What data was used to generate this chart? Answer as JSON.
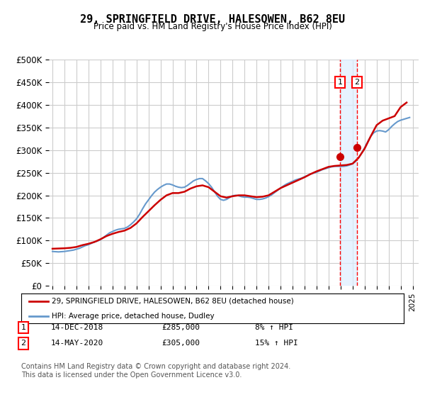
{
  "title": "29, SPRINGFIELD DRIVE, HALESOWEN, B62 8EU",
  "subtitle": "Price paid vs. HM Land Registry's House Price Index (HPI)",
  "xlabel": "",
  "ylabel": "",
  "ylim": [
    0,
    500000
  ],
  "yticks": [
    0,
    50000,
    100000,
    150000,
    200000,
    250000,
    300000,
    350000,
    400000,
    450000,
    500000
  ],
  "ytick_labels": [
    "£0",
    "£50K",
    "£100K",
    "£150K",
    "£200K",
    "£250K",
    "£300K",
    "£350K",
    "£400K",
    "£450K",
    "£500K"
  ],
  "xlim_start": 1995.0,
  "xlim_end": 2025.5,
  "xtick_years": [
    1995,
    1996,
    1997,
    1998,
    1999,
    2000,
    2001,
    2002,
    2003,
    2004,
    2005,
    2006,
    2007,
    2008,
    2009,
    2010,
    2011,
    2012,
    2013,
    2014,
    2015,
    2016,
    2017,
    2018,
    2019,
    2020,
    2021,
    2022,
    2023,
    2024,
    2025
  ],
  "red_line_color": "#cc0000",
  "blue_line_color": "#6699cc",
  "transaction1_x": 2018.95,
  "transaction1_y": 285000,
  "transaction1_label": "14-DEC-2018",
  "transaction1_price": "£285,000",
  "transaction1_hpi": "8% ↑ HPI",
  "transaction2_x": 2020.37,
  "transaction2_y": 305000,
  "transaction2_label": "14-MAY-2020",
  "transaction2_price": "£305,000",
  "transaction2_hpi": "15% ↑ HPI",
  "legend_line1": "29, SPRINGFIELD DRIVE, HALESOWEN, B62 8EU (detached house)",
  "legend_line2": "HPI: Average price, detached house, Dudley",
  "footnote": "Contains HM Land Registry data © Crown copyright and database right 2024.\nThis data is licensed under the Open Government Licence v3.0.",
  "hpi_data_x": [
    1995.0,
    1995.25,
    1995.5,
    1995.75,
    1996.0,
    1996.25,
    1996.5,
    1996.75,
    1997.0,
    1997.25,
    1997.5,
    1997.75,
    1998.0,
    1998.25,
    1998.5,
    1998.75,
    1999.0,
    1999.25,
    1999.5,
    1999.75,
    2000.0,
    2000.25,
    2000.5,
    2000.75,
    2001.0,
    2001.25,
    2001.5,
    2001.75,
    2002.0,
    2002.25,
    2002.5,
    2002.75,
    2003.0,
    2003.25,
    2003.5,
    2003.75,
    2004.0,
    2004.25,
    2004.5,
    2004.75,
    2005.0,
    2005.25,
    2005.5,
    2005.75,
    2006.0,
    2006.25,
    2006.5,
    2006.75,
    2007.0,
    2007.25,
    2007.5,
    2007.75,
    2008.0,
    2008.25,
    2008.5,
    2008.75,
    2009.0,
    2009.25,
    2009.5,
    2009.75,
    2010.0,
    2010.25,
    2010.5,
    2010.75,
    2011.0,
    2011.25,
    2011.5,
    2011.75,
    2012.0,
    2012.25,
    2012.5,
    2012.75,
    2013.0,
    2013.25,
    2013.5,
    2013.75,
    2014.0,
    2014.25,
    2014.5,
    2014.75,
    2015.0,
    2015.25,
    2015.5,
    2015.75,
    2016.0,
    2016.25,
    2016.5,
    2016.75,
    2017.0,
    2017.25,
    2017.5,
    2017.75,
    2018.0,
    2018.25,
    2018.5,
    2018.75,
    2019.0,
    2019.25,
    2019.5,
    2019.75,
    2020.0,
    2020.25,
    2020.5,
    2020.75,
    2021.0,
    2021.25,
    2021.5,
    2021.75,
    2022.0,
    2022.25,
    2022.5,
    2022.75,
    2023.0,
    2023.25,
    2023.5,
    2023.75,
    2024.0,
    2024.25,
    2024.5,
    2024.75
  ],
  "hpi_data_y": [
    76000,
    75500,
    75000,
    75500,
    76000,
    77000,
    78000,
    79000,
    81000,
    83000,
    86000,
    89000,
    91000,
    94000,
    97000,
    99000,
    102000,
    107000,
    112000,
    117000,
    120000,
    123000,
    125000,
    126000,
    127000,
    130000,
    135000,
    141000,
    148000,
    158000,
    170000,
    181000,
    190000,
    199000,
    207000,
    213000,
    218000,
    222000,
    225000,
    225000,
    223000,
    220000,
    218000,
    217000,
    218000,
    222000,
    227000,
    232000,
    235000,
    237000,
    237000,
    232000,
    226000,
    218000,
    208000,
    198000,
    191000,
    189000,
    191000,
    195000,
    199000,
    200000,
    199000,
    197000,
    196000,
    196000,
    195000,
    193000,
    191000,
    191000,
    192000,
    194000,
    197000,
    201000,
    206000,
    211000,
    216000,
    221000,
    225000,
    228000,
    231000,
    234000,
    236000,
    238000,
    241000,
    244000,
    247000,
    249000,
    251000,
    254000,
    257000,
    259000,
    261000,
    263000,
    264000,
    264000,
    264000,
    264000,
    265000,
    267000,
    270000,
    275000,
    283000,
    293000,
    305000,
    318000,
    330000,
    338000,
    342000,
    343000,
    342000,
    340000,
    345000,
    352000,
    358000,
    363000,
    366000,
    368000,
    370000,
    372000
  ],
  "property_data_x": [
    1995.0,
    1995.5,
    1996.0,
    1996.5,
    1997.0,
    1997.5,
    1998.0,
    1998.5,
    1999.0,
    1999.5,
    2000.0,
    2000.5,
    2001.0,
    2001.5,
    2002.0,
    2002.5,
    2003.0,
    2003.5,
    2004.0,
    2004.5,
    2005.0,
    2005.5,
    2006.0,
    2006.5,
    2007.0,
    2007.5,
    2008.0,
    2008.5,
    2009.0,
    2009.5,
    2010.0,
    2010.5,
    2011.0,
    2011.5,
    2012.0,
    2012.5,
    2013.0,
    2013.5,
    2014.0,
    2014.5,
    2015.0,
    2015.5,
    2016.0,
    2016.5,
    2017.0,
    2017.5,
    2018.0,
    2018.5,
    2019.0,
    2019.5,
    2020.0,
    2020.5,
    2021.0,
    2021.5,
    2022.0,
    2022.5,
    2023.0,
    2023.5,
    2024.0,
    2024.5
  ],
  "property_data_y": [
    82000,
    82500,
    83000,
    84000,
    86000,
    90000,
    93000,
    97000,
    103000,
    110000,
    115000,
    119000,
    122000,
    128000,
    138000,
    152000,
    165000,
    178000,
    190000,
    200000,
    205000,
    205000,
    208000,
    215000,
    220000,
    222000,
    218000,
    208000,
    198000,
    195000,
    198000,
    200000,
    200000,
    198000,
    196000,
    197000,
    200000,
    208000,
    216000,
    222000,
    228000,
    234000,
    240000,
    247000,
    253000,
    258000,
    263000,
    265000,
    266000,
    267000,
    270000,
    283000,
    303000,
    330000,
    355000,
    365000,
    370000,
    375000,
    395000,
    405000
  ],
  "bg_color": "#ffffff",
  "plot_bg_color": "#ffffff",
  "grid_color": "#cccccc",
  "shaded_region_color": "#ddeeff"
}
